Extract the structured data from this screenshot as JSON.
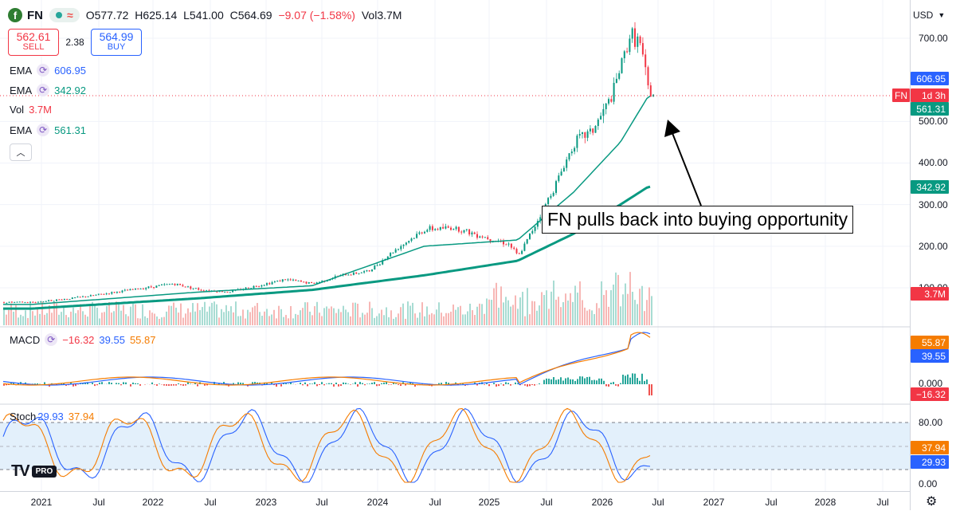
{
  "header": {
    "logo_glyph": "f",
    "symbol": "FN",
    "open": "O577.72",
    "high": "H625.14",
    "low": "L541.00",
    "close": "C564.69",
    "change": "−9.07 (−1.58%)",
    "volume": "Vol3.7M"
  },
  "trade": {
    "sell_price": "562.61",
    "sell_label": "SELL",
    "spread": "2.38",
    "buy_price": "564.99",
    "buy_label": "BUY"
  },
  "legend": [
    {
      "label": "EMA",
      "value": "606.95",
      "color": "#2962ff"
    },
    {
      "label": "EMA",
      "value": "342.92",
      "color": "#089981"
    },
    {
      "label": "Vol",
      "value": "3.7M",
      "color": "#f23645"
    },
    {
      "label": "EMA",
      "value": "561.31",
      "color": "#089981"
    }
  ],
  "annotation": "FN pulls back into buying opportunity",
  "price_axis": {
    "currency": "USD",
    "ticks": [
      "700.00",
      "500.00",
      "400.00",
      "300.00",
      "200.00",
      "100.00"
    ],
    "tags": [
      {
        "text": "606.95",
        "color": "#2962ff"
      },
      {
        "text": "FN",
        "color": "#f23645"
      },
      {
        "text": "1d 3h",
        "color": "#f23645"
      },
      {
        "text": "561.31",
        "color": "#089981"
      },
      {
        "text": "342.92",
        "color": "#089981"
      },
      {
        "text": "3.7M",
        "color": "#f23645"
      }
    ]
  },
  "macd_pane": {
    "label": "MACD",
    "hist": "−16.32",
    "macd": "39.55",
    "signal": "55.87",
    "ticks": [
      "0.000"
    ],
    "tags": [
      {
        "text": "55.87",
        "color": "#f57c00"
      },
      {
        "text": "39.55",
        "color": "#2962ff"
      },
      {
        "text": "−16.32",
        "color": "#f23645"
      }
    ]
  },
  "stoch_pane": {
    "label": "Stoch",
    "k": "29.93",
    "d": "37.94",
    "ticks": [
      "80.00",
      "0.00"
    ],
    "tags": [
      {
        "text": "37.94",
        "color": "#f57c00"
      },
      {
        "text": "29.93",
        "color": "#2962ff"
      }
    ]
  },
  "time_axis": [
    "2021",
    "Jul",
    "2022",
    "Jul",
    "2023",
    "Jul",
    "2024",
    "Jul",
    "2025",
    "Jul",
    "2026",
    "Jul",
    "2027",
    "Jul",
    "2028",
    "Jul"
  ],
  "branding": {
    "logo": "TV",
    "badge": "PRO"
  },
  "chart_data": {
    "type": "line",
    "series": [
      {
        "name": "FN",
        "x": [
          "2020-12",
          "2021-03",
          "2021-06",
          "2021-09",
          "2021-12",
          "2022-03",
          "2022-06",
          "2022-09",
          "2022-12",
          "2023-03",
          "2023-06",
          "2023-09",
          "2023-12",
          "2024-03",
          "2024-06",
          "2024-09",
          "2024-12",
          "2025-03",
          "2025-04",
          "2025-06",
          "2025-08",
          "2025-10",
          "2025-12",
          "2026-02",
          "2026-04",
          "2026-05",
          "2026-06"
        ],
        "y": [
          65,
          72,
          80,
          90,
          100,
          110,
          95,
          90,
          105,
          120,
          110,
          130,
          140,
          195,
          240,
          245,
          225,
          205,
          175,
          260,
          350,
          450,
          480,
          560,
          710,
          690,
          565
        ]
      },
      {
        "name": "EMA",
        "x": [
          "2020-12",
          "2022-06",
          "2023-06",
          "2024-06",
          "2025-04",
          "2025-10",
          "2026-03",
          "2026-06"
        ],
        "y": [
          50,
          75,
          95,
          130,
          165,
          230,
          300,
          343
        ]
      },
      {
        "name": "EMA",
        "x": [
          "2020-12",
          "2022-06",
          "2023-06",
          "2024-06",
          "2025-04",
          "2025-10",
          "2026-03",
          "2026-06"
        ],
        "y": [
          60,
          90,
          105,
          200,
          215,
          330,
          450,
          561
        ]
      }
    ],
    "price_ticks": [
      100,
      200,
      300,
      400,
      500,
      700
    ],
    "macd": {
      "hist": -16.32,
      "macd": 39.55,
      "signal": 55.87
    },
    "stoch": {
      "k": 29.93,
      "d": 37.94,
      "levels": [
        80,
        20
      ]
    },
    "grid": true
  }
}
